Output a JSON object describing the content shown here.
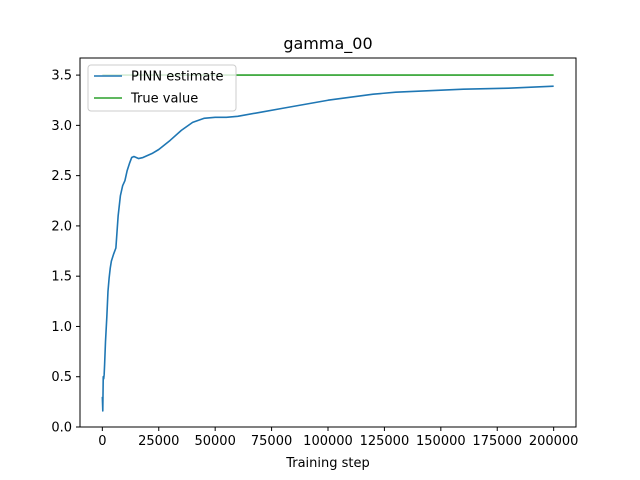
{
  "chart_data": {
    "type": "line",
    "title": "gamma_00",
    "xlabel": "Training step",
    "ylabel": "",
    "xlim": [
      -9900,
      209900
    ],
    "ylim": [
      0.0,
      3.67
    ],
    "x_ticks": [
      0,
      25000,
      50000,
      75000,
      100000,
      125000,
      150000,
      175000,
      200000
    ],
    "x_tick_labels": [
      "0",
      "25000",
      "50000",
      "75000",
      "100000",
      "125000",
      "150000",
      "175000",
      "200000"
    ],
    "y_ticks": [
      0.0,
      0.5,
      1.0,
      1.5,
      2.0,
      2.5,
      3.0,
      3.5
    ],
    "y_tick_labels": [
      "0.0",
      "0.5",
      "1.0",
      "1.5",
      "2.0",
      "2.5",
      "3.0",
      "3.5"
    ],
    "grid": false,
    "legend_position": "upper left",
    "series": [
      {
        "name": "PINN estimate",
        "color": "#1f77b4",
        "x": [
          0,
          200,
          400,
          600,
          800,
          1000,
          1400,
          2000,
          2500,
          3000,
          3500,
          4000,
          5000,
          6000,
          7000,
          8000,
          9000,
          10000,
          11000,
          12000,
          13000,
          14000,
          15000,
          16000,
          18000,
          20000,
          22000,
          25000,
          30000,
          35000,
          40000,
          45000,
          50000,
          55000,
          60000,
          70000,
          80000,
          90000,
          100000,
          110000,
          120000,
          130000,
          140000,
          150000,
          160000,
          170000,
          180000,
          190000,
          200000
        ],
        "y": [
          0.3,
          0.16,
          0.5,
          0.48,
          0.52,
          0.62,
          0.85,
          1.1,
          1.35,
          1.48,
          1.58,
          1.65,
          1.72,
          1.78,
          2.1,
          2.3,
          2.4,
          2.45,
          2.55,
          2.62,
          2.68,
          2.69,
          2.68,
          2.67,
          2.68,
          2.7,
          2.72,
          2.76,
          2.85,
          2.95,
          3.03,
          3.07,
          3.08,
          3.08,
          3.09,
          3.13,
          3.17,
          3.21,
          3.25,
          3.28,
          3.31,
          3.33,
          3.34,
          3.35,
          3.36,
          3.365,
          3.37,
          3.38,
          3.39
        ]
      },
      {
        "name": "True value",
        "color": "#2ca02c",
        "x": [
          0,
          200000
        ],
        "y": [
          3.5,
          3.5
        ]
      }
    ]
  }
}
